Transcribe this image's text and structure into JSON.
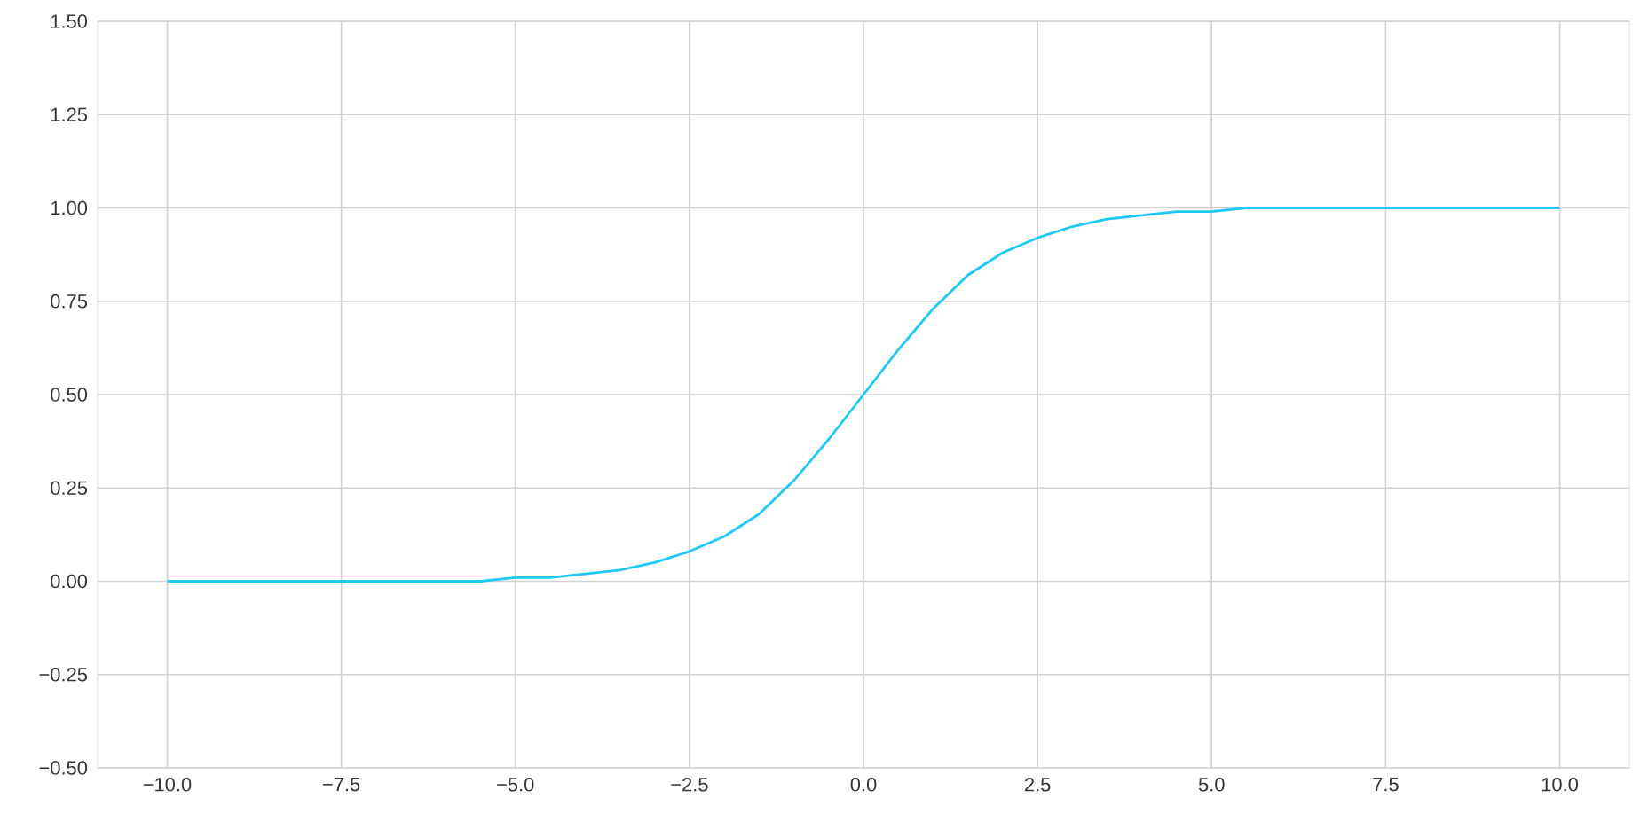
{
  "chart_data": {
    "type": "line",
    "color": "#1ec8f8",
    "grid": true,
    "line_style": "solid",
    "x": [
      -10,
      -9.5,
      -9,
      -8.5,
      -8,
      -7.5,
      -7,
      -6.5,
      -6,
      -5.5,
      -5,
      -4.5,
      -4,
      -3.5,
      -3,
      -2.5,
      -2,
      -1.5,
      -1,
      -0.5,
      0,
      0.5,
      1,
      1.5,
      2,
      2.5,
      3,
      3.5,
      4,
      4.5,
      5,
      5.5,
      6,
      6.5,
      7,
      7.5,
      8,
      8.5,
      9,
      9.5,
      10
    ],
    "values": [
      0,
      0,
      0,
      0,
      0,
      0,
      0,
      0,
      0,
      0,
      0.01,
      0.01,
      0.02,
      0.03,
      0.05,
      0.08,
      0.12,
      0.18,
      0.27,
      0.38,
      0.5,
      0.62,
      0.73,
      0.82,
      0.88,
      0.92,
      0.95,
      0.97,
      0.98,
      0.99,
      0.99,
      1,
      1,
      1,
      1,
      1,
      1,
      1,
      1,
      1,
      1
    ],
    "xlim": [
      -11,
      11
    ],
    "ylim": [
      -0.5,
      1.5
    ],
    "xticks": [
      {
        "value": -10,
        "label": "−10.0"
      },
      {
        "value": -7.5,
        "label": "−7.5"
      },
      {
        "value": -5,
        "label": "−5.0"
      },
      {
        "value": -2.5,
        "label": "−2.5"
      },
      {
        "value": 0,
        "label": "0.0"
      },
      {
        "value": 2.5,
        "label": "2.5"
      },
      {
        "value": 5,
        "label": "5.0"
      },
      {
        "value": 7.5,
        "label": "7.5"
      },
      {
        "value": 10,
        "label": "10.0"
      }
    ],
    "yticks": [
      {
        "value": -0.5,
        "label": "−0.50"
      },
      {
        "value": -0.25,
        "label": "−0.25"
      },
      {
        "value": 0,
        "label": "0.00"
      },
      {
        "value": 0.25,
        "label": "0.25"
      },
      {
        "value": 0.5,
        "label": "0.50"
      },
      {
        "value": 0.75,
        "label": "0.75"
      },
      {
        "value": 1,
        "label": "1.00"
      },
      {
        "value": 1.25,
        "label": "1.25"
      },
      {
        "value": 1.5,
        "label": "1.50"
      }
    ]
  }
}
